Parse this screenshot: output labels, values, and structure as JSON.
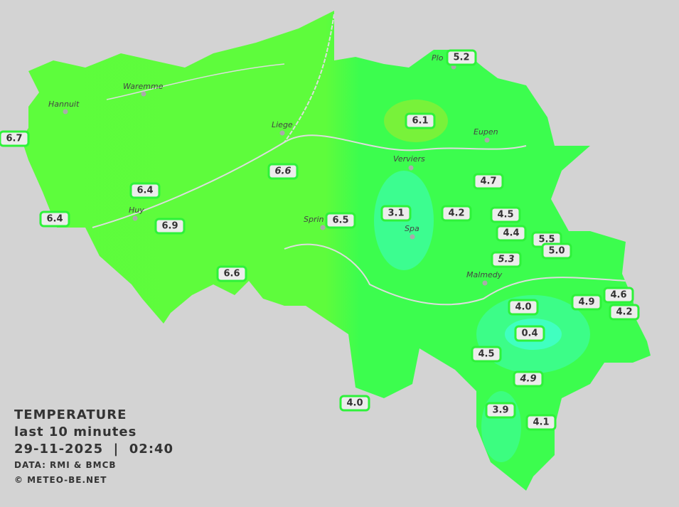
{
  "title": "TEMPERATURE",
  "subtitle": "last 10 minutes",
  "datetime": "29-11-2025  |  02:40",
  "source": "DATA: RMI & BMCB",
  "copyright": "© METEO-BE.NET",
  "colors": {
    "background": "#d3d3d3",
    "warm": "#5dfd3c",
    "mid": "#3cfd4e",
    "cool": "#3cfd90",
    "coldest": "#40ffc0",
    "label_border": "#2ef23a"
  },
  "cities": [
    "Hannuit",
    "Waremme",
    "Liege",
    "Huy",
    "Verviers",
    "Eupen",
    "Sprin",
    "Spa",
    "Malmedy",
    "Plo"
  ],
  "readings": [
    {
      "v": "6.7"
    },
    {
      "v": "5.2"
    },
    {
      "v": "6.1"
    },
    {
      "v": "4.7"
    },
    {
      "v": "6.6",
      "italic": true
    },
    {
      "v": "6.4"
    },
    {
      "v": "6.4"
    },
    {
      "v": "6.9"
    },
    {
      "v": "3.1"
    },
    {
      "v": "4.2"
    },
    {
      "v": "4.5"
    },
    {
      "v": "6.5"
    },
    {
      "v": "4.4"
    },
    {
      "v": "5.5"
    },
    {
      "v": "5.0"
    },
    {
      "v": "5.3",
      "italic": true
    },
    {
      "v": "6.6"
    },
    {
      "v": "4.9"
    },
    {
      "v": "4.6"
    },
    {
      "v": "4.0"
    },
    {
      "v": "4.2"
    },
    {
      "v": "0.4"
    },
    {
      "v": "4.5"
    },
    {
      "v": "4.9",
      "italic": true
    },
    {
      "v": "4.0"
    },
    {
      "v": "3.9"
    },
    {
      "v": "4.1"
    }
  ]
}
